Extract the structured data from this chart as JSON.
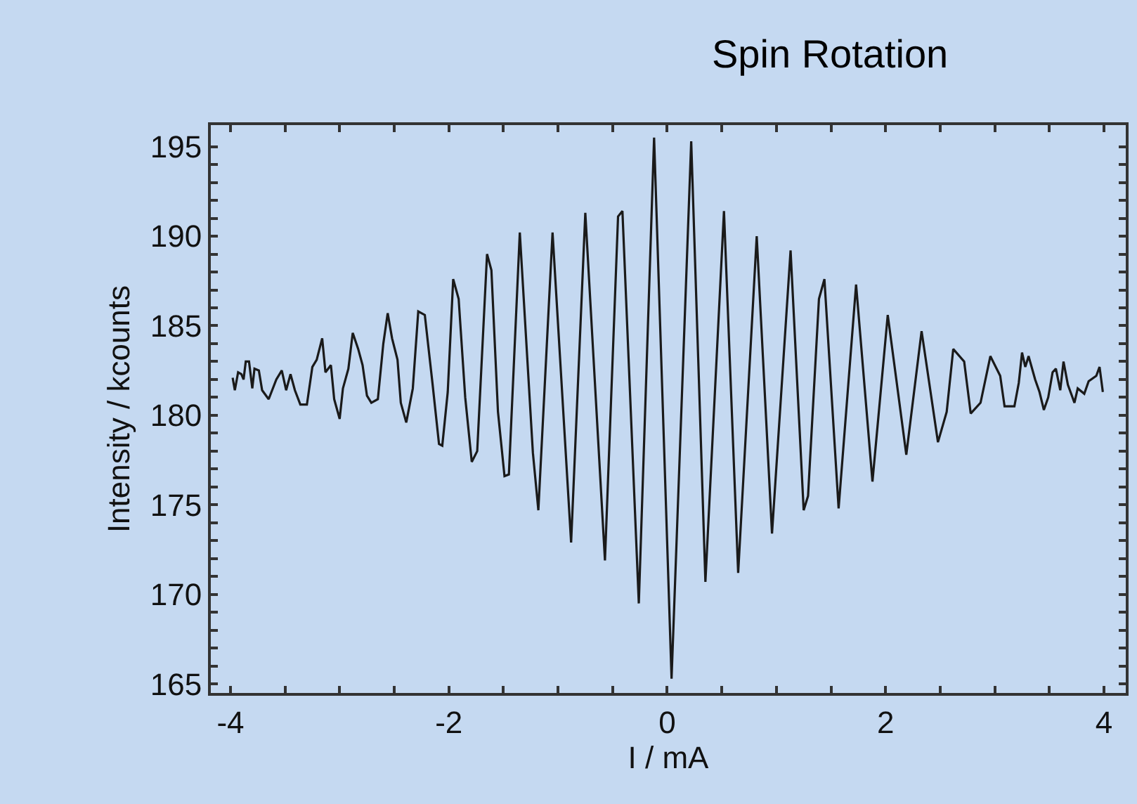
{
  "chart_data": {
    "type": "line",
    "title": "Spin Rotation",
    "xlabel": "I / mA",
    "ylabel": "Intensity / kcounts",
    "grid": false,
    "marker": "none",
    "line_style": "solid",
    "xlim": [
      -4.18,
      4.2
    ],
    "ylim": [
      164.5,
      196.2
    ],
    "xticks": [
      -4,
      {
        "value": -3.5,
        "label": null
      },
      {
        "value": -3,
        "label": null
      },
      {
        "value": -2.5,
        "label": null
      },
      -2,
      {
        "value": -1.5,
        "label": null
      },
      {
        "value": -1,
        "label": null
      },
      {
        "value": -0.5,
        "label": null
      },
      0,
      {
        "value": 0.5,
        "label": null
      },
      {
        "value": 1,
        "label": null
      },
      {
        "value": 1.5,
        "label": null
      },
      2,
      {
        "value": 2.5,
        "label": null
      },
      {
        "value": 3,
        "label": null
      },
      {
        "value": 3.5,
        "label": null
      },
      4
    ],
    "yticks": [
      165,
      {
        "value": 166,
        "label": null
      },
      {
        "value": 167,
        "label": null
      },
      {
        "value": 168,
        "label": null
      },
      {
        "value": 169,
        "label": null
      },
      170,
      {
        "value": 171,
        "label": null
      },
      {
        "value": 172,
        "label": null
      },
      {
        "value": 173,
        "label": null
      },
      {
        "value": 174,
        "label": null
      },
      175,
      {
        "value": 176,
        "label": null
      },
      {
        "value": 177,
        "label": null
      },
      {
        "value": 178,
        "label": null
      },
      {
        "value": 179,
        "label": null
      },
      180,
      {
        "value": 181,
        "label": null
      },
      {
        "value": 182,
        "label": null
      },
      {
        "value": 183,
        "label": null
      },
      {
        "value": 184,
        "label": null
      },
      185,
      {
        "value": 186,
        "label": null
      },
      {
        "value": 187,
        "label": null
      },
      {
        "value": 188,
        "label": null
      },
      {
        "value": 189,
        "label": null
      },
      190,
      {
        "value": 191,
        "label": null
      },
      {
        "value": 192,
        "label": null
      },
      {
        "value": 193,
        "label": null
      },
      {
        "value": 194,
        "label": null
      },
      195
    ],
    "series": [
      {
        "color": "#1a1a1a",
        "x": [
          -3.98,
          -3.96,
          -3.93,
          -3.9,
          -3.88,
          -3.86,
          -3.83,
          -3.8,
          -3.78,
          -3.74,
          -3.71,
          -3.65,
          -3.58,
          -3.53,
          -3.49,
          -3.45,
          -3.41,
          -3.36,
          -3.3,
          -3.25,
          -3.21,
          -3.16,
          -3.13,
          -3.08,
          -3.05,
          -3.0,
          -2.97,
          -2.92,
          -2.88,
          -2.83,
          -2.79,
          -2.75,
          -2.71,
          -2.65,
          -2.6,
          -2.56,
          -2.52,
          -2.47,
          -2.44,
          -2.39,
          -2.33,
          -2.28,
          -2.22,
          -2.15,
          -2.09,
          -2.06,
          -2.01,
          -1.96,
          -1.91,
          -1.85,
          -1.79,
          -1.74,
          -1.65,
          -1.61,
          -1.55,
          -1.49,
          -1.45,
          -1.35,
          -1.23,
          -1.18,
          -1.05,
          -0.88,
          -0.75,
          -0.57,
          -0.45,
          -0.41,
          -0.26,
          -0.12,
          0.04,
          0.22,
          0.35,
          0.52,
          0.65,
          0.82,
          0.96,
          1.13,
          1.25,
          1.29,
          1.39,
          1.44,
          1.57,
          1.73,
          1.88,
          2.02,
          2.19,
          2.33,
          2.48,
          2.56,
          2.62,
          2.72,
          2.78,
          2.87,
          2.96,
          3.05,
          3.09,
          3.18,
          3.22,
          3.25,
          3.28,
          3.31,
          3.37,
          3.41,
          3.45,
          3.49,
          3.53,
          3.56,
          3.6,
          3.63,
          3.67,
          3.73,
          3.76,
          3.82,
          3.86,
          3.93,
          3.96,
          3.99
        ],
        "values": [
          182.1,
          181.4,
          182.4,
          182.3,
          182.0,
          183.0,
          183.0,
          181.5,
          182.6,
          182.5,
          181.4,
          180.9,
          182.0,
          182.5,
          181.4,
          182.3,
          181.4,
          180.6,
          180.6,
          182.7,
          183.1,
          184.3,
          182.4,
          182.8,
          180.9,
          179.8,
          181.5,
          182.6,
          184.6,
          183.7,
          182.8,
          181.1,
          180.7,
          180.9,
          184.0,
          185.7,
          184.3,
          183.1,
          180.7,
          179.6,
          181.5,
          185.8,
          185.6,
          181.8,
          178.4,
          178.3,
          181.3,
          187.6,
          186.5,
          181.0,
          177.4,
          178.0,
          189.0,
          188.1,
          180.2,
          176.6,
          176.7,
          190.2,
          177.9,
          174.7,
          190.2,
          172.9,
          191.3,
          171.9,
          191.1,
          191.4,
          169.5,
          195.5,
          165.3,
          195.3,
          170.7,
          191.4,
          171.2,
          190.0,
          173.4,
          189.2,
          174.7,
          175.5,
          186.5,
          187.6,
          174.8,
          187.3,
          176.3,
          185.6,
          177.8,
          184.7,
          178.5,
          180.2,
          183.7,
          183.0,
          180.1,
          180.7,
          183.3,
          182.2,
          180.5,
          180.5,
          181.8,
          183.5,
          182.7,
          183.3,
          182.0,
          181.3,
          180.3,
          181.0,
          182.4,
          182.6,
          181.4,
          183.0,
          181.7,
          180.7,
          181.5,
          181.2,
          181.9,
          182.2,
          182.7,
          181.3
        ]
      }
    ]
  }
}
